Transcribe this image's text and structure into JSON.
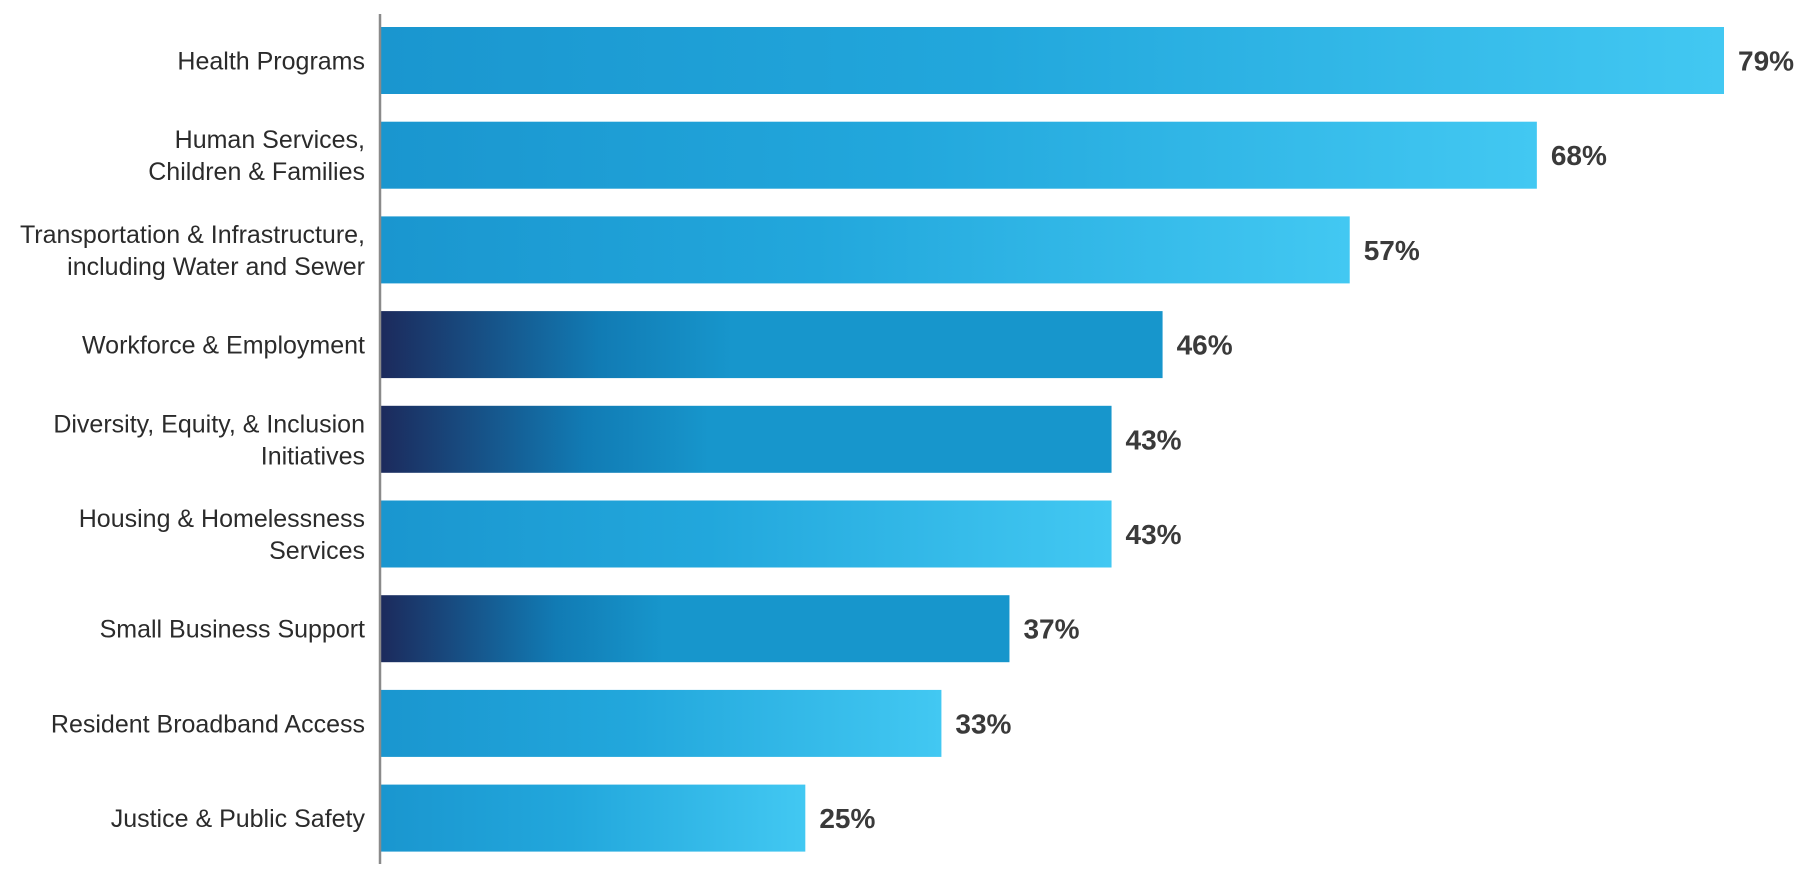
{
  "chart_data": {
    "type": "bar",
    "orientation": "horizontal",
    "categories": [
      "Health Programs",
      "Human Services,\nChildren & Families",
      "Transportation & Infrastructure,\nincluding Water and Sewer",
      "Workforce & Employment",
      "Diversity, Equity, & Inclusion\nInitiatives",
      "Housing & Homelessness\nServices",
      "Small Business Support",
      "Resident Broadband Access",
      "Justice & Public Safety"
    ],
    "values": [
      79,
      68,
      57,
      46,
      43,
      43,
      37,
      33,
      25
    ],
    "value_labels": [
      "79%",
      "68%",
      "57%",
      "46%",
      "43%",
      "43%",
      "37%",
      "33%",
      "25%"
    ],
    "bar_styles": [
      "light",
      "light",
      "light",
      "dark",
      "dark",
      "light",
      "dark",
      "light",
      "light"
    ],
    "title": "",
    "xlabel": "",
    "ylabel": "",
    "xlim": [
      0,
      79
    ],
    "grid": false,
    "legend": "none",
    "colors": {
      "light_start": "#1a96cf",
      "light_mid": "#22a7dc",
      "light_end": "#42c8f2",
      "dark_start": "#1c2a5c",
      "dark_mid": "#117bb4",
      "dark_end": "#1796cc",
      "axis": "#8a8a8a",
      "label_text": "#2b2b2b",
      "value_text": "#3a3a3a"
    }
  }
}
